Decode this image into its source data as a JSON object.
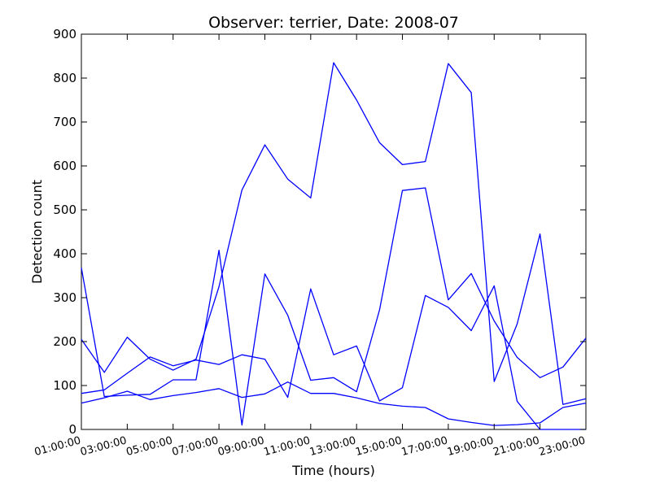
{
  "chart_data": {
    "type": "line",
    "title": "Observer: terrier, Date: 2008-07",
    "xlabel": "Time (hours)",
    "ylabel": "Detection count",
    "ylim": [
      0,
      900
    ],
    "yticks": [
      "0",
      "100",
      "200",
      "300",
      "400",
      "500",
      "600",
      "700",
      "800",
      "900"
    ],
    "xticks": [
      "01:00:00",
      "03:00:00",
      "05:00:00",
      "07:00:00",
      "09:00:00",
      "11:00:00",
      "13:00:00",
      "15:00:00",
      "17:00:00",
      "19:00:00",
      "21:00:00",
      "23:00:00"
    ],
    "x": [
      "01:00:00",
      "02:00:00",
      "03:00:00",
      "04:00:00",
      "05:00:00",
      "06:00:00",
      "07:00:00",
      "08:00:00",
      "09:00:00",
      "10:00:00",
      "11:00:00",
      "12:00:00",
      "13:00:00",
      "14:00:00",
      "15:00:00",
      "16:00:00",
      "17:00:00",
      "18:00:00",
      "19:00:00",
      "20:00:00",
      "21:00:00",
      "22:00:00",
      "23:00:00"
    ],
    "series_color": "#0000ff",
    "grid": false,
    "series": [
      {
        "values": [
          205,
          130,
          210,
          160,
          135,
          160,
          325,
          545,
          648,
          570,
          527,
          835,
          750,
          653,
          603,
          610,
          833,
          767,
          109,
          240,
          445,
          57,
          70
        ]
      },
      {
        "values": [
          60,
          72,
          87,
          68,
          77,
          84,
          93,
          73,
          81,
          108,
          82,
          82,
          72,
          59,
          53,
          50,
          24,
          16,
          9,
          11,
          15,
          50,
          60
        ]
      },
      {
        "values": [
          82,
          90,
          128,
          165,
          145,
          158,
          148,
          170,
          160,
          73,
          320,
          170,
          190,
          65,
          95,
          305,
          278,
          225,
          327,
          64,
          0,
          0,
          0
        ]
      },
      {
        "values": [
          368,
          75,
          78,
          80,
          113,
          113,
          408,
          10,
          354,
          260,
          112,
          118,
          86,
          272,
          544,
          550,
          295,
          355,
          247,
          164,
          118,
          142,
          208
        ]
      }
    ]
  }
}
